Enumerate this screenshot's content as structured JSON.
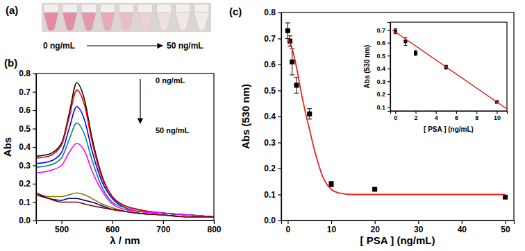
{
  "photo": {
    "title": "(a)",
    "start_label": "0 ng/mL",
    "end_label": "50 ng/mL",
    "colors": [
      "#e48aa6",
      "#e48ca8",
      "#e796b0",
      "#e9a8bd",
      "#ecbccb",
      "#eed0d8",
      "#eee0e2",
      "#eee8e6",
      "#efecea"
    ]
  },
  "chart_data": [
    {
      "type": "line",
      "title": "(b)",
      "x_label": "λ / nm",
      "y_label": "Abs",
      "annotations": [
        "0 ng/mL",
        "50 ng/mL"
      ],
      "x": [
        450,
        475,
        500,
        515,
        530,
        545,
        560,
        580,
        600,
        625,
        650,
        700,
        750,
        800
      ],
      "series": [
        {
          "color": "#000000",
          "values": [
            0.35,
            0.36,
            0.42,
            0.58,
            0.75,
            0.66,
            0.45,
            0.24,
            0.13,
            0.08,
            0.06,
            0.04,
            0.03,
            0.02
          ]
        },
        {
          "color": "#ff0000",
          "values": [
            0.34,
            0.35,
            0.41,
            0.56,
            0.71,
            0.63,
            0.43,
            0.23,
            0.13,
            0.08,
            0.06,
            0.04,
            0.03,
            0.02
          ]
        },
        {
          "color": "#0000ff",
          "values": [
            0.31,
            0.32,
            0.37,
            0.5,
            0.62,
            0.55,
            0.38,
            0.21,
            0.12,
            0.07,
            0.05,
            0.04,
            0.03,
            0.02
          ]
        },
        {
          "color": "#008080",
          "values": [
            0.29,
            0.3,
            0.34,
            0.44,
            0.53,
            0.47,
            0.33,
            0.18,
            0.1,
            0.07,
            0.05,
            0.04,
            0.03,
            0.02
          ]
        },
        {
          "color": "#ff00ff",
          "values": [
            0.26,
            0.27,
            0.3,
            0.37,
            0.42,
            0.38,
            0.27,
            0.16,
            0.09,
            0.06,
            0.05,
            0.04,
            0.03,
            0.02
          ]
        },
        {
          "color": "#808000",
          "values": [
            0.15,
            0.13,
            0.13,
            0.14,
            0.15,
            0.14,
            0.12,
            0.09,
            0.07,
            0.05,
            0.04,
            0.03,
            0.02,
            0.02
          ]
        },
        {
          "color": "#000080",
          "values": [
            0.14,
            0.12,
            0.11,
            0.12,
            0.12,
            0.11,
            0.1,
            0.08,
            0.06,
            0.05,
            0.04,
            0.03,
            0.02,
            0.02
          ]
        },
        {
          "color": "#800000",
          "values": [
            0.15,
            0.12,
            0.1,
            0.1,
            0.1,
            0.09,
            0.08,
            0.07,
            0.06,
            0.05,
            0.04,
            0.03,
            0.02,
            0.02
          ]
        }
      ],
      "xlim": [
        450,
        800
      ],
      "xticks": [
        500,
        600,
        700,
        800
      ],
      "ylim": [
        0,
        0.8
      ],
      "yticks": [
        {
          "value": 0,
          "label": "0.0"
        },
        0.1,
        0.2,
        0.3,
        0.4,
        0.5,
        0.6,
        0.7,
        0.8
      ]
    },
    {
      "type": "scatter",
      "title": "(c)",
      "x_label": "[ PSA ] (ng/mL)",
      "y_label": "Abs (530 nm)",
      "marker": "square",
      "series": [
        {
          "type": "scatter",
          "color": "#000000",
          "marker": "square",
          "x": [
            0,
            0.5,
            1,
            2,
            5,
            10,
            20,
            50
          ],
          "values": [
            0.73,
            0.69,
            0.61,
            0.52,
            0.41,
            0.14,
            0.12,
            0.09
          ],
          "errors": [
            0.03,
            0.02,
            0.05,
            0.03,
            0.02,
            0.01,
            0.005,
            0.005
          ]
        },
        {
          "type": "line",
          "color": "#e8231f",
          "x": [
            0,
            1,
            2,
            3,
            4,
            5,
            6,
            7,
            8,
            10,
            12,
            15,
            20,
            30,
            40,
            50
          ],
          "values": [
            0.7,
            0.66,
            0.59,
            0.5,
            0.42,
            0.35,
            0.28,
            0.22,
            0.17,
            0.12,
            0.105,
            0.1,
            0.1,
            0.1,
            0.1,
            0.1
          ]
        }
      ],
      "xlim": [
        -1.5,
        52
      ],
      "xticks": [
        0,
        10,
        20,
        30,
        40,
        50
      ],
      "ylim": [
        0,
        0.8
      ],
      "yticks": [
        {
          "value": 0,
          "label": "0.0"
        },
        0.1,
        0.2,
        0.3,
        0.4,
        0.5,
        0.6,
        0.7,
        0.8
      ]
    },
    {
      "type": "scatter",
      "x_label": "[ PSA ] (ng/mL)",
      "y_label": "Abs (530 nm)",
      "marker": "square",
      "series": [
        {
          "type": "scatter",
          "color": "#000000",
          "marker": "square",
          "x": [
            0,
            1,
            2,
            5,
            10
          ],
          "values": [
            0.69,
            0.61,
            0.52,
            0.41,
            0.14
          ],
          "errors": [
            0.02,
            0.03,
            0.02,
            0.015,
            0.005
          ]
        },
        {
          "type": "line",
          "color": "#e8231f",
          "x": [
            -0.3,
            11
          ],
          "values": [
            0.7,
            0.085
          ]
        }
      ],
      "xlim": [
        -0.5,
        11
      ],
      "xticks": [
        0,
        2,
        4,
        6,
        8,
        10
      ],
      "ylim": [
        0.07,
        0.76
      ],
      "yticks": [
        0.1,
        0.2,
        0.3,
        0.4,
        0.5,
        0.6,
        0.7
      ]
    }
  ]
}
